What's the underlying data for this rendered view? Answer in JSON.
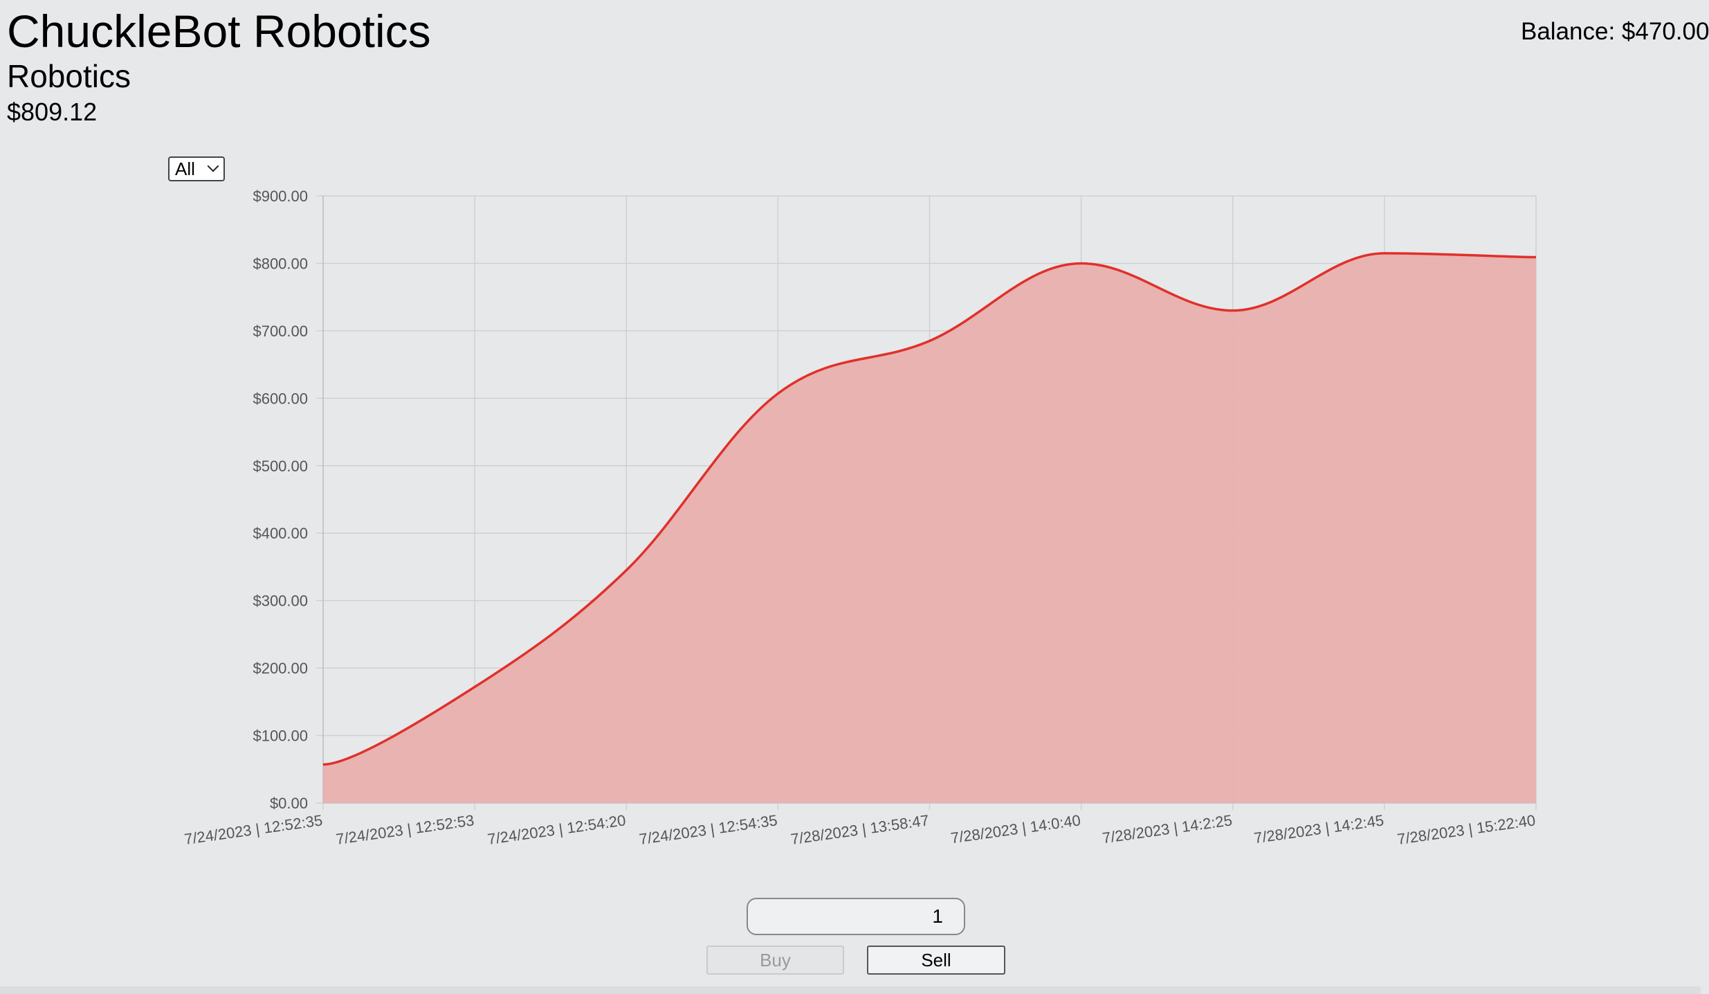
{
  "header": {
    "company_name": "ChuckleBot Robotics",
    "sector": "Robotics",
    "price": "$809.12",
    "balance": "Balance: $470.00"
  },
  "range_select": {
    "selected": "All"
  },
  "chart_data": {
    "type": "area",
    "categories": [
      "7/24/2023 | 12:52:35",
      "7/24/2023 | 12:52:53",
      "7/24/2023 | 12:54:20",
      "7/24/2023 | 12:54:35",
      "7/28/2023 | 13:58:47",
      "7/28/2023 | 14:0:40",
      "7/28/2023 | 14:2:25",
      "7/28/2023 | 14:2:45",
      "7/28/2023 | 15:22:40"
    ],
    "values": [
      57,
      172,
      345,
      607,
      685,
      800,
      730,
      815,
      809.12
    ],
    "ylim": [
      0,
      900
    ],
    "yticks": [
      "$0.00",
      "$100.00",
      "$200.00",
      "$300.00",
      "$400.00",
      "$500.00",
      "$600.00",
      "$700.00",
      "$800.00",
      "$900.00"
    ],
    "grid": true,
    "line_color": "#e0302b",
    "fill_color": "#e8b0ae"
  },
  "trade": {
    "quantity": "1",
    "buy_label": "Buy",
    "sell_label": "Sell"
  }
}
